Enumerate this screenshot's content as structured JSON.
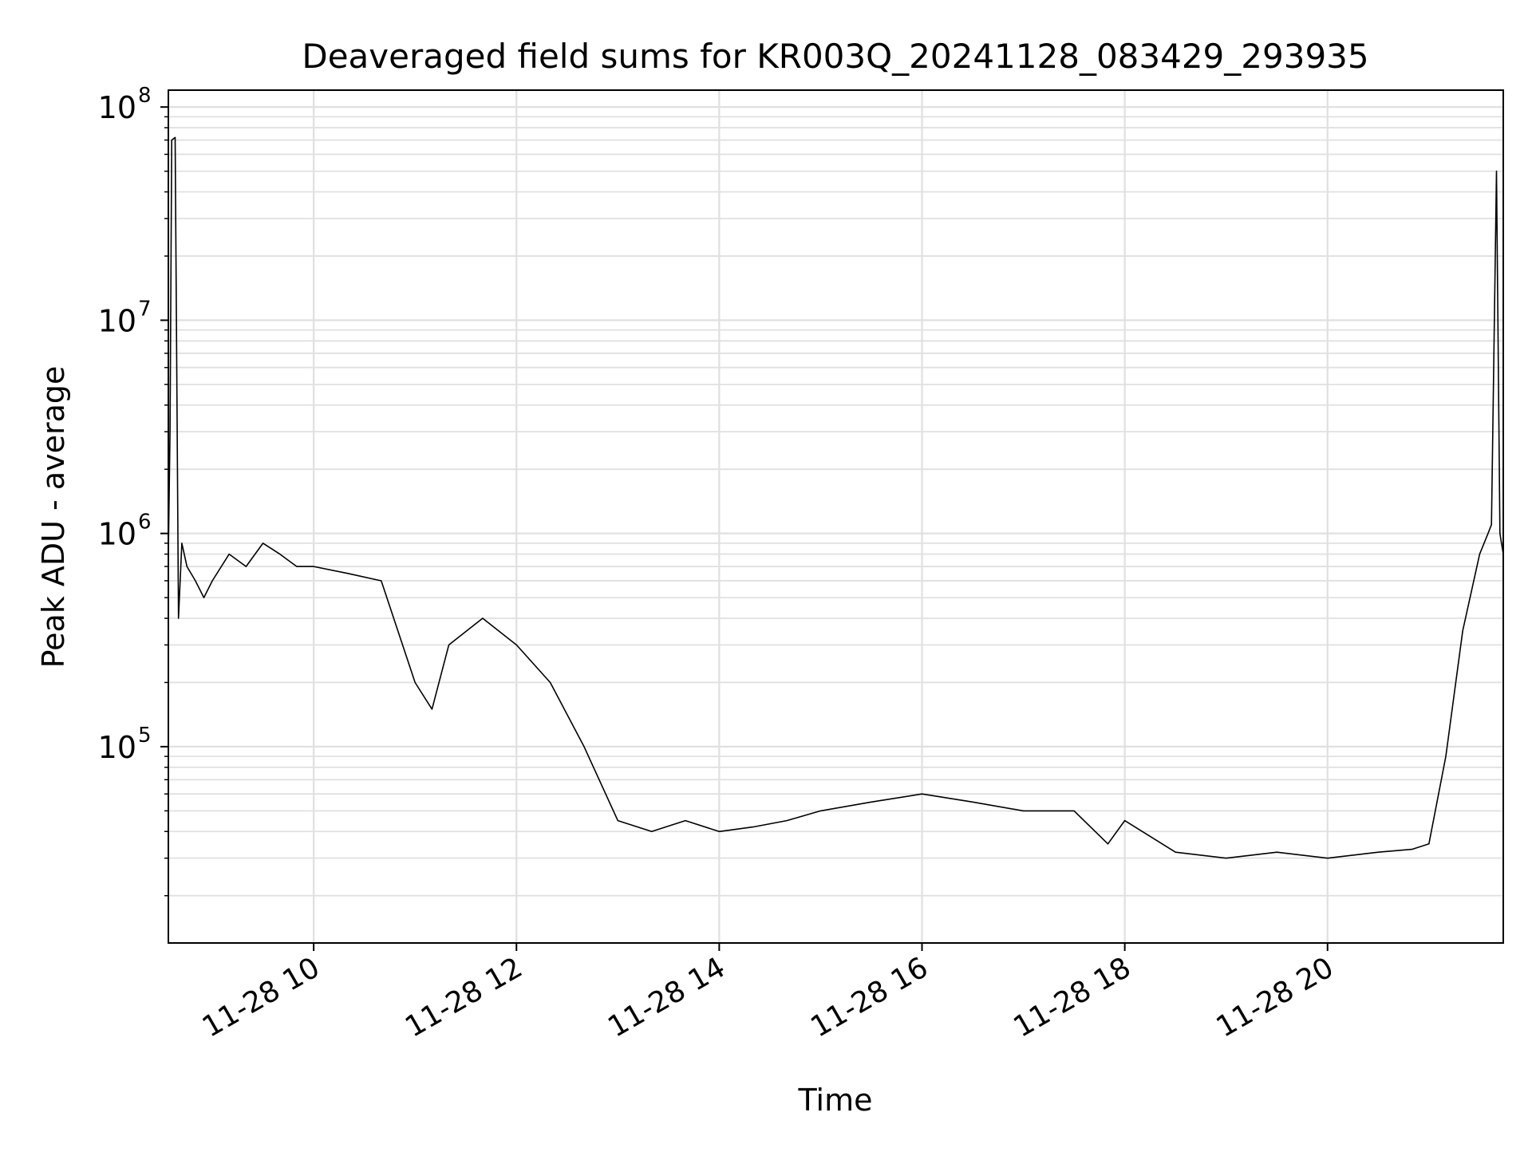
{
  "chart_data": {
    "type": "line",
    "title": "Deaveraged field sums for KR003Q_20241128_083429_293935",
    "xlabel": "Time",
    "ylabel": "Peak ADU - average",
    "yscale": "log",
    "xlim": [
      "2024-11-28 08:34",
      "2024-11-28 21:44"
    ],
    "ylim": [
      12000,
      120000000
    ],
    "grid": true,
    "grid_minor": true,
    "line_color": "#000000",
    "grid_color": "#e0e0e0",
    "x_ticks": [
      {
        "t": "2024-11-28 10:00",
        "label": "11-28 10"
      },
      {
        "t": "2024-11-28 12:00",
        "label": "11-28 12"
      },
      {
        "t": "2024-11-28 14:00",
        "label": "11-28 14"
      },
      {
        "t": "2024-11-28 16:00",
        "label": "11-28 16"
      },
      {
        "t": "2024-11-28 18:00",
        "label": "11-28 18"
      },
      {
        "t": "2024-11-28 20:00",
        "label": "11-28 20"
      }
    ],
    "y_ticks": [
      {
        "value": 100000,
        "base": "10",
        "exp": "5"
      },
      {
        "value": 1000000,
        "base": "10",
        "exp": "6"
      },
      {
        "value": 10000000,
        "base": "10",
        "exp": "7"
      },
      {
        "value": 100000000,
        "base": "10",
        "exp": "8"
      }
    ],
    "series": [
      {
        "x": [
          "2024-11-28 08:34",
          "2024-11-28 08:35",
          "2024-11-28 08:36",
          "2024-11-28 08:38",
          "2024-11-28 08:40",
          "2024-11-28 08:42",
          "2024-11-28 08:45",
          "2024-11-28 08:50",
          "2024-11-28 08:55",
          "2024-11-28 09:00",
          "2024-11-28 09:10",
          "2024-11-28 09:20",
          "2024-11-28 09:30",
          "2024-11-28 09:40",
          "2024-11-28 09:50",
          "2024-11-28 10:00",
          "2024-11-28 10:20",
          "2024-11-28 10:40",
          "2024-11-28 11:00",
          "2024-11-28 11:10",
          "2024-11-28 11:20",
          "2024-11-28 11:40",
          "2024-11-28 12:00",
          "2024-11-28 12:20",
          "2024-11-28 12:40",
          "2024-11-28 13:00",
          "2024-11-28 13:20",
          "2024-11-28 13:40",
          "2024-11-28 14:00",
          "2024-11-28 14:20",
          "2024-11-28 14:40",
          "2024-11-28 15:00",
          "2024-11-28 15:30",
          "2024-11-28 16:00",
          "2024-11-28 16:30",
          "2024-11-28 17:00",
          "2024-11-28 17:30",
          "2024-11-28 17:50",
          "2024-11-28 18:00",
          "2024-11-28 18:30",
          "2024-11-28 19:00",
          "2024-11-28 19:30",
          "2024-11-28 20:00",
          "2024-11-28 20:30",
          "2024-11-28 20:50",
          "2024-11-28 21:00",
          "2024-11-28 21:10",
          "2024-11-28 21:20",
          "2024-11-28 21:30",
          "2024-11-28 21:35",
          "2024-11-28 21:37",
          "2024-11-28 21:40",
          "2024-11-28 21:42",
          "2024-11-28 21:44"
        ],
        "y": [
          800000,
          3000000,
          70000000,
          72000000,
          400000,
          900000,
          700000,
          600000,
          500000,
          600000,
          800000,
          700000,
          900000,
          800000,
          700000,
          700000,
          650000,
          600000,
          200000,
          150000,
          300000,
          400000,
          300000,
          200000,
          100000,
          45000,
          40000,
          45000,
          40000,
          42000,
          45000,
          50000,
          55000,
          60000,
          55000,
          50000,
          50000,
          35000,
          45000,
          32000,
          30000,
          32000,
          30000,
          32000,
          33000,
          35000,
          90000,
          350000,
          800000,
          1000000,
          1100000,
          50000000,
          1000000,
          800000
        ]
      }
    ]
  }
}
